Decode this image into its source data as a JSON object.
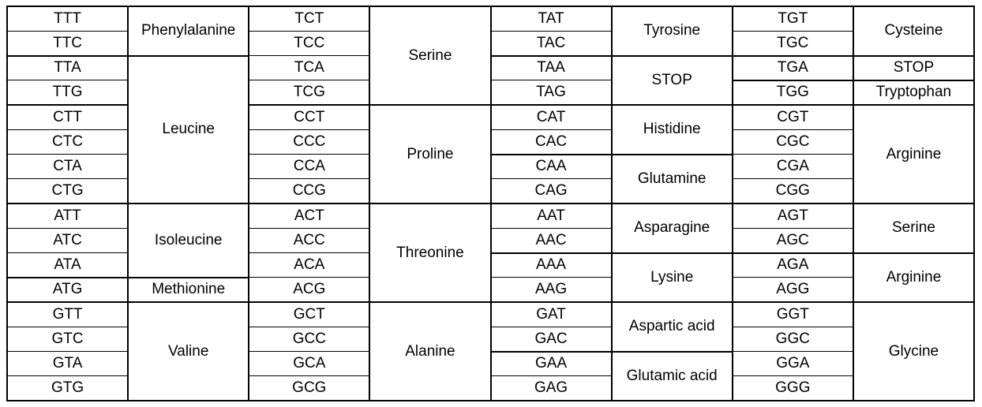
{
  "table": {
    "rows": 16,
    "block_starts": [
      0,
      4,
      8,
      12
    ],
    "colors": {
      "border": "#000000",
      "background": "#ffffff",
      "text": "#000000"
    },
    "pairs": [
      {
        "codons": [
          "TTT",
          "TTC",
          "TTA",
          "TTG",
          "CTT",
          "CTC",
          "CTA",
          "CTG",
          "ATT",
          "ATC",
          "ATA",
          "ATG",
          "GTT",
          "GTC",
          "GTA",
          "GTG"
        ],
        "amino_spans": [
          {
            "label": "Phenylalanine",
            "start": 0,
            "span": 2
          },
          {
            "label": "Leucine",
            "start": 2,
            "span": 6
          },
          {
            "label": "Isoleucine",
            "start": 8,
            "span": 3
          },
          {
            "label": "Methionine",
            "start": 11,
            "span": 1
          },
          {
            "label": "Valine",
            "start": 12,
            "span": 4
          }
        ]
      },
      {
        "codons": [
          "TCT",
          "TCC",
          "TCA",
          "TCG",
          "CCT",
          "CCC",
          "CCA",
          "CCG",
          "ACT",
          "ACC",
          "ACA",
          "ACG",
          "GCT",
          "GCC",
          "GCA",
          "GCG"
        ],
        "amino_spans": [
          {
            "label": "Serine",
            "start": 0,
            "span": 4
          },
          {
            "label": "Proline",
            "start": 4,
            "span": 4
          },
          {
            "label": "Threonine",
            "start": 8,
            "span": 4
          },
          {
            "label": "Alanine",
            "start": 12,
            "span": 4
          }
        ]
      },
      {
        "codons": [
          "TAT",
          "TAC",
          "TAA",
          "TAG",
          "CAT",
          "CAC",
          "CAA",
          "CAG",
          "AAT",
          "AAC",
          "AAA",
          "AAG",
          "GAT",
          "GAC",
          "GAA",
          "GAG"
        ],
        "amino_spans": [
          {
            "label": "Tyrosine",
            "start": 0,
            "span": 2
          },
          {
            "label": "STOP",
            "start": 2,
            "span": 2
          },
          {
            "label": "Histidine",
            "start": 4,
            "span": 2
          },
          {
            "label": "Glutamine",
            "start": 6,
            "span": 2
          },
          {
            "label": "Asparagine",
            "start": 8,
            "span": 2
          },
          {
            "label": "Lysine",
            "start": 10,
            "span": 2
          },
          {
            "label": "Aspartic acid",
            "start": 12,
            "span": 2
          },
          {
            "label": "Glutamic acid",
            "start": 14,
            "span": 2
          }
        ]
      },
      {
        "codons": [
          "TGT",
          "TGC",
          "TGA",
          "TGG",
          "CGT",
          "CGC",
          "CGA",
          "CGG",
          "AGT",
          "AGC",
          "AGA",
          "AGG",
          "GGT",
          "GGC",
          "GGA",
          "GGG"
        ],
        "amino_spans": [
          {
            "label": "Cysteine",
            "start": 0,
            "span": 2
          },
          {
            "label": "STOP",
            "start": 2,
            "span": 1
          },
          {
            "label": "Tryptophan",
            "start": 3,
            "span": 1
          },
          {
            "label": "Arginine",
            "start": 4,
            "span": 4
          },
          {
            "label": "Serine",
            "start": 8,
            "span": 2
          },
          {
            "label": "Arginine",
            "start": 10,
            "span": 2
          },
          {
            "label": "Glycine",
            "start": 12,
            "span": 4
          }
        ]
      }
    ]
  }
}
